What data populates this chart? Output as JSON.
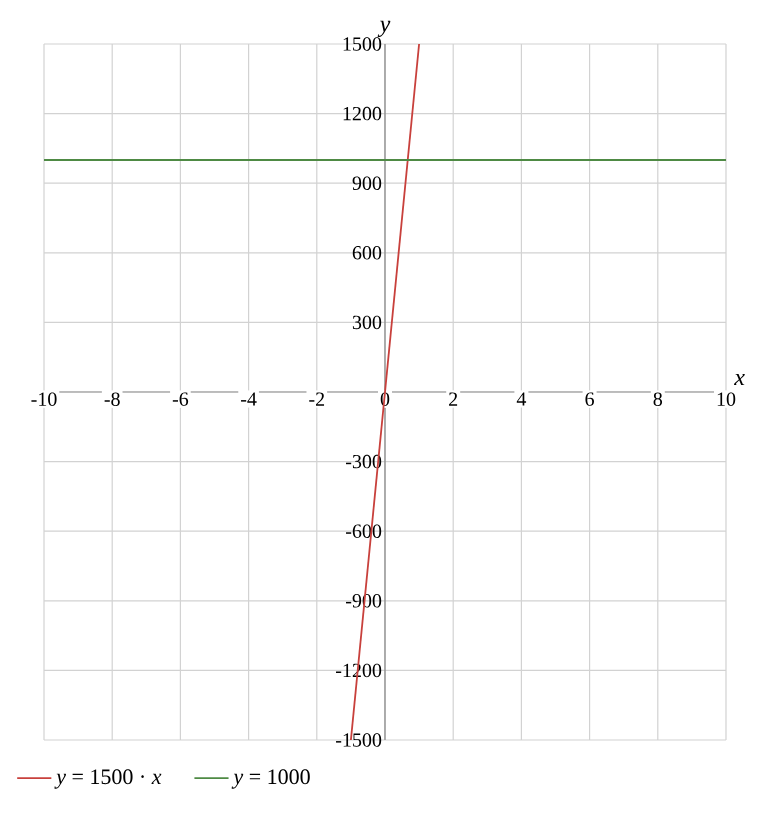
{
  "chart_data": {
    "type": "line",
    "xlabel": "x",
    "ylabel": "y",
    "series": [
      {
        "name": "*y* = 1500 · *x*",
        "color": "#c8403c",
        "x": [
          -1,
          1
        ],
        "values": [
          -1500,
          1500
        ]
      },
      {
        "name": "*y* = 1000",
        "color": "#4e8a44",
        "x": [
          -10,
          10
        ],
        "values": [
          1000,
          1000
        ]
      }
    ],
    "xlim": [
      -10,
      10
    ],
    "ylim": [
      -1500,
      1500
    ],
    "xticks": [
      -10,
      -8,
      -6,
      -4,
      -2,
      0,
      2,
      4,
      6,
      8,
      10
    ],
    "yticks": [
      -1500,
      -1200,
      -900,
      -600,
      -300,
      300,
      600,
      900,
      1200,
      1500
    ],
    "grid": true,
    "legend": "bottom left",
    "marker": "none",
    "line_style": "solid"
  }
}
